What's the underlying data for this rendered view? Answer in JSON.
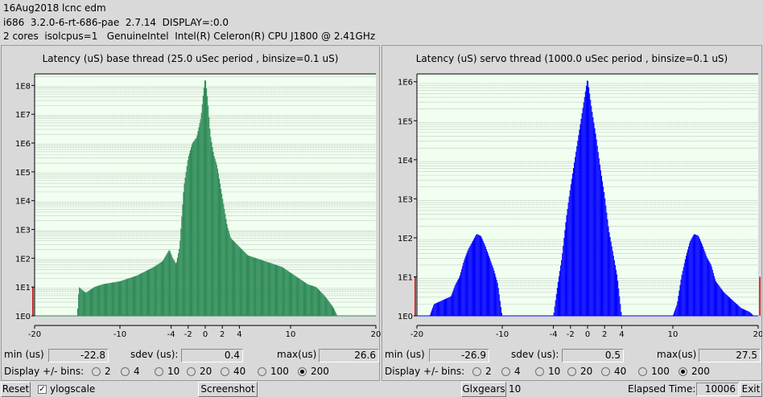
{
  "header": {
    "line1": "16Aug2018 lcnc edm",
    "line2": "i686  3.2.0-6-rt-686-pae  2.7.14  DISPLAY=:0.0",
    "line3": "2 cores  isolcpus=1   GenuineIntel  Intel(R) Celeron(R) CPU J1800 @ 2.41GHz"
  },
  "base": {
    "title": "Latency (uS) base thread (25.0 uSec period , binsize=0.1 uS)",
    "min_label": "min (us)",
    "min_value": "-22.8",
    "sdev_label": "sdev (us):",
    "sdev_value": "0.4",
    "max_label": "max(us)",
    "max_value": "26.6",
    "bins_label": "Display +/- bins:",
    "bins": [
      "2",
      "4",
      "10",
      "20",
      "40",
      "100",
      "200"
    ],
    "selected_bin": "200"
  },
  "servo": {
    "title": "Latency (uS) servo thread (1000.0 uSec period , binsize=0.1 uS)",
    "min_label": "min (us)",
    "min_value": "-26.9",
    "sdev_label": "sdev (us):",
    "sdev_value": "0.5",
    "max_label": "max(us)",
    "max_value": "27.5",
    "bins_label": "Display +/- bins:",
    "bins": [
      "2",
      "4",
      "10",
      "20",
      "40",
      "100",
      "200"
    ],
    "selected_bin": "200"
  },
  "bottom": {
    "reset_label": "Reset",
    "ylogscale_label": "ylogscale",
    "ylogscale_checked": true,
    "screenshot_label": "Screenshot",
    "glxgears_label": "Glxgears",
    "glxgears_value": "10",
    "elapsed_label": "Elapsed Time:",
    "elapsed_value": "10006",
    "exit_label": "Exit"
  },
  "chart_data": [
    {
      "type": "bar",
      "title": "Latency (uS) base thread (25.0 uSec period , binsize=0.1 uS)",
      "color": "#2e8b57",
      "background": "#f0fff0",
      "ylog": true,
      "xlim": [
        -20,
        20
      ],
      "xticks": [
        "-20",
        "-10",
        "-4",
        "-2",
        "0",
        "2",
        "4",
        "10",
        "20"
      ],
      "xtick_values": [
        -20,
        -10,
        -4,
        -2,
        0,
        2,
        4,
        10,
        20
      ],
      "yticks": [
        "1E0",
        "1E1",
        "1E2",
        "1E3",
        "1E4",
        "1E5",
        "1E6",
        "1E7",
        "1E8"
      ],
      "ymax_decade": 8.4,
      "envelope": [
        [
          -20.2,
          1
        ],
        [
          -20.1,
          0
        ],
        [
          -15.0,
          0
        ],
        [
          -14.8,
          1.0
        ],
        [
          -14.0,
          0.8
        ],
        [
          -13.0,
          1.0
        ],
        [
          -12.0,
          1.1
        ],
        [
          -10.0,
          1.2
        ],
        [
          -8.0,
          1.4
        ],
        [
          -6.0,
          1.7
        ],
        [
          -5.0,
          1.9
        ],
        [
          -4.2,
          2.3
        ],
        [
          -3.8,
          2.0
        ],
        [
          -3.4,
          1.8
        ],
        [
          -3.0,
          2.4
        ],
        [
          -2.5,
          4.5
        ],
        [
          -2.0,
          5.5
        ],
        [
          -1.5,
          6.0
        ],
        [
          -1.0,
          6.2
        ],
        [
          -0.5,
          6.9
        ],
        [
          -0.2,
          7.8
        ],
        [
          0.0,
          8.3
        ],
        [
          0.3,
          7.5
        ],
        [
          0.6,
          6.3
        ],
        [
          1.0,
          5.6
        ],
        [
          1.4,
          5.2
        ],
        [
          1.8,
          4.5
        ],
        [
          2.2,
          3.8
        ],
        [
          2.6,
          3.1
        ],
        [
          3.0,
          2.7
        ],
        [
          4.0,
          2.4
        ],
        [
          5.0,
          2.1
        ],
        [
          6.0,
          2.0
        ],
        [
          7.0,
          1.9
        ],
        [
          8.0,
          1.8
        ],
        [
          9.0,
          1.7
        ],
        [
          10.0,
          1.5
        ],
        [
          11.0,
          1.3
        ],
        [
          12.0,
          1.1
        ],
        [
          13.0,
          1.0
        ],
        [
          14.0,
          0.7
        ],
        [
          15.0,
          0.3
        ],
        [
          15.5,
          0.0
        ],
        [
          20.0,
          0
        ]
      ],
      "outliers": [
        [
          -20.2,
          1.0
        ]
      ]
    },
    {
      "type": "bar",
      "title": "Latency (uS) servo thread (1000.0 uSec period , binsize=0.1 uS)",
      "color": "#0000ff",
      "background": "#f0fff0",
      "ylog": true,
      "xlim": [
        -20,
        20
      ],
      "xticks": [
        "-20",
        "-10",
        "-4",
        "-2",
        "0",
        "2",
        "4",
        "10",
        "20"
      ],
      "xtick_values": [
        -20,
        -10,
        -4,
        -2,
        0,
        2,
        4,
        10,
        20
      ],
      "yticks": [
        "1E0",
        "1E1",
        "1E2",
        "1E3",
        "1E4",
        "1E5",
        "1E6"
      ],
      "ymax_decade": 6.2,
      "envelope": [
        [
          -20.2,
          1
        ],
        [
          -20.1,
          0
        ],
        [
          -18.5,
          0
        ],
        [
          -18.0,
          0.3
        ],
        [
          -17.0,
          0.4
        ],
        [
          -16.0,
          0.5
        ],
        [
          -15.5,
          0.8
        ],
        [
          -15.0,
          1.0
        ],
        [
          -14.5,
          1.4
        ],
        [
          -14.0,
          1.7
        ],
        [
          -13.5,
          1.9
        ],
        [
          -13.0,
          2.1
        ],
        [
          -12.5,
          2.05
        ],
        [
          -12.0,
          1.8
        ],
        [
          -11.5,
          1.5
        ],
        [
          -11.0,
          1.2
        ],
        [
          -10.5,
          0.8
        ],
        [
          -10.2,
          0.3
        ],
        [
          -10.0,
          0
        ],
        [
          -4.0,
          0
        ],
        [
          -3.5,
          0.8
        ],
        [
          -3.0,
          1.5
        ],
        [
          -2.5,
          2.5
        ],
        [
          -2.0,
          3.3
        ],
        [
          -1.5,
          4.0
        ],
        [
          -1.0,
          4.7
        ],
        [
          -0.5,
          5.4
        ],
        [
          0.0,
          6.1
        ],
        [
          0.5,
          5.3
        ],
        [
          1.0,
          4.6
        ],
        [
          1.5,
          3.8
        ],
        [
          2.0,
          3.1
        ],
        [
          2.5,
          2.2
        ],
        [
          3.0,
          1.6
        ],
        [
          3.5,
          1.0
        ],
        [
          4.0,
          0
        ],
        [
          10.0,
          0
        ],
        [
          10.5,
          0.3
        ],
        [
          11.0,
          1.0
        ],
        [
          11.5,
          1.5
        ],
        [
          12.0,
          1.9
        ],
        [
          12.5,
          2.1
        ],
        [
          13.0,
          2.05
        ],
        [
          13.5,
          1.8
        ],
        [
          14.0,
          1.5
        ],
        [
          14.5,
          1.3
        ],
        [
          15.0,
          0.9
        ],
        [
          16.0,
          0.6
        ],
        [
          17.0,
          0.4
        ],
        [
          18.0,
          0.2
        ],
        [
          19.0,
          0.1
        ],
        [
          19.5,
          0
        ],
        [
          20.0,
          0
        ]
      ],
      "outliers": [
        [
          -20.2,
          1.0
        ],
        [
          20.2,
          1.0
        ]
      ]
    }
  ]
}
